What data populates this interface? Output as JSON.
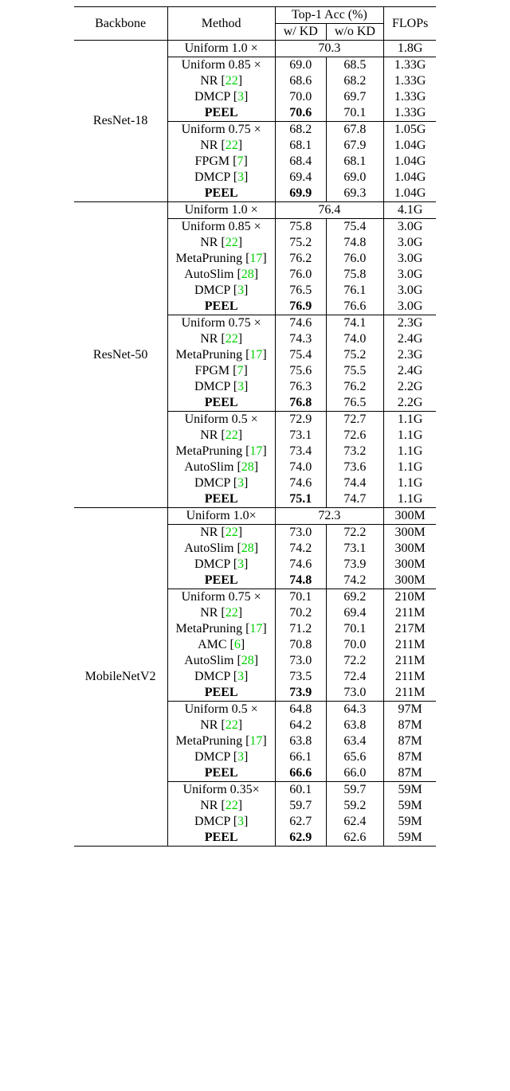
{
  "colors": {
    "cite": "#00d000",
    "border": "#000000",
    "text": "#000000",
    "bg": "#ffffff"
  },
  "font": {
    "family": "Times New Roman",
    "size_pt": 12
  },
  "header": {
    "backbone": "Backbone",
    "method": "Method",
    "top1": "Top-1 Acc (%)",
    "wkd": "w/ KD",
    "wokd": "w/o KD",
    "flops": "FLOPs"
  },
  "backbones": [
    {
      "name": "ResNet-18",
      "groups": [
        {
          "baseline": true,
          "rows": [
            {
              "method": "Uniform 1.0 ×",
              "merged": "70.3",
              "flops": "1.8G"
            }
          ]
        },
        {
          "rows": [
            {
              "method": "Uniform 0.85 ×",
              "wkd": "69.0",
              "wokd": "68.5",
              "flops": "1.33G"
            },
            {
              "method": "NR",
              "cite": "22",
              "wkd": "68.6",
              "wokd": "68.2",
              "flops": "1.33G"
            },
            {
              "method": "DMCP",
              "cite": "3",
              "wkd": "70.0",
              "wokd": "69.7",
              "flops": "1.33G"
            },
            {
              "method": "PEEL",
              "bold": true,
              "wkd": "70.6",
              "wkd_bold": true,
              "wokd": "70.1",
              "flops": "1.33G"
            }
          ]
        },
        {
          "rows": [
            {
              "method": "Uniform 0.75 ×",
              "wkd": "68.2",
              "wokd": "67.8",
              "flops": "1.05G"
            },
            {
              "method": "NR",
              "cite": "22",
              "wkd": "68.1",
              "wokd": "67.9",
              "flops": "1.04G"
            },
            {
              "method": "FPGM",
              "cite": "7",
              "wkd": "68.4",
              "wokd": "68.1",
              "flops": "1.04G"
            },
            {
              "method": "DMCP",
              "cite": "3",
              "wkd": "69.4",
              "wokd": "69.0",
              "flops": "1.04G"
            },
            {
              "method": "PEEL",
              "bold": true,
              "wkd": "69.9",
              "wkd_bold": true,
              "wokd": "69.3",
              "flops": "1.04G"
            }
          ]
        }
      ]
    },
    {
      "name": "ResNet-50",
      "groups": [
        {
          "baseline": true,
          "rows": [
            {
              "method": "Uniform 1.0 ×",
              "merged": "76.4",
              "flops": "4.1G"
            }
          ]
        },
        {
          "rows": [
            {
              "method": "Uniform 0.85 ×",
              "wkd": "75.8",
              "wokd": "75.4",
              "flops": "3.0G"
            },
            {
              "method": "NR",
              "cite": "22",
              "wkd": "75.2",
              "wokd": "74.8",
              "flops": "3.0G"
            },
            {
              "method": "MetaPruning",
              "cite": "17",
              "wkd": "76.2",
              "wokd": "76.0",
              "flops": "3.0G"
            },
            {
              "method": "AutoSlim",
              "cite": "28",
              "wkd": "76.0",
              "wokd": "75.8",
              "flops": "3.0G"
            },
            {
              "method": "DMCP",
              "cite": "3",
              "wkd": "76.5",
              "wokd": "76.1",
              "flops": "3.0G"
            },
            {
              "method": "PEEL",
              "bold": true,
              "wkd": "76.9",
              "wkd_bold": true,
              "wokd": "76.6",
              "flops": "3.0G"
            }
          ]
        },
        {
          "rows": [
            {
              "method": "Uniform 0.75 ×",
              "wkd": "74.6",
              "wokd": "74.1",
              "flops": "2.3G"
            },
            {
              "method": "NR",
              "cite": "22",
              "wkd": "74.3",
              "wokd": "74.0",
              "flops": "2.4G"
            },
            {
              "method": "MetaPruning",
              "cite": "17",
              "wkd": "75.4",
              "wokd": "75.2",
              "flops": "2.3G"
            },
            {
              "method": "FPGM",
              "cite": "7",
              "wkd": "75.6",
              "wokd": "75.5",
              "flops": "2.4G"
            },
            {
              "method": "DMCP",
              "cite": "3",
              "wkd": "76.3",
              "wokd": "76.2",
              "flops": "2.2G"
            },
            {
              "method": "PEEL",
              "bold": true,
              "wkd": "76.8",
              "wkd_bold": true,
              "wokd": "76.5",
              "flops": "2.2G"
            }
          ]
        },
        {
          "rows": [
            {
              "method": "Uniform 0.5 ×",
              "wkd": "72.9",
              "wokd": "72.7",
              "flops": "1.1G"
            },
            {
              "method": "NR",
              "cite": "22",
              "wkd": "73.1",
              "wokd": "72.6",
              "flops": "1.1G"
            },
            {
              "method": "MetaPruning",
              "cite": "17",
              "wkd": "73.4",
              "wokd": "73.2",
              "flops": "1.1G"
            },
            {
              "method": "AutoSlim",
              "cite": "28",
              "wkd": "74.0",
              "wokd": "73.6",
              "flops": "1.1G"
            },
            {
              "method": "DMCP",
              "cite": "3",
              "wkd": "74.6",
              "wokd": "74.4",
              "flops": "1.1G"
            },
            {
              "method": "PEEL",
              "bold": true,
              "wkd": "75.1",
              "wkd_bold": true,
              "wokd": "74.7",
              "flops": "1.1G"
            }
          ]
        }
      ]
    },
    {
      "name": "MobileNetV2",
      "groups": [
        {
          "baseline": true,
          "rows": [
            {
              "method": "Uniform 1.0×",
              "merged": "72.3",
              "flops": "300M"
            }
          ]
        },
        {
          "rows": [
            {
              "method": "NR",
              "cite": "22",
              "wkd": "73.0",
              "wokd": "72.2",
              "flops": "300M"
            },
            {
              "method": "AutoSlim",
              "cite": "28",
              "wkd": "74.2",
              "wokd": "73.1",
              "flops": "300M"
            },
            {
              "method": "DMCP",
              "cite": "3",
              "wkd": "74.6",
              "wokd": "73.9",
              "flops": "300M"
            },
            {
              "method": "PEEL",
              "bold": true,
              "wkd": "74.8",
              "wkd_bold": true,
              "wokd": "74.2",
              "flops": "300M"
            }
          ]
        },
        {
          "rows": [
            {
              "method": "Uniform 0.75 ×",
              "wkd": "70.1",
              "wokd": "69.2",
              "flops": "210M"
            },
            {
              "method": "NR",
              "cite": "22",
              "wkd": "70.2",
              "wokd": "69.4",
              "flops": "211M"
            },
            {
              "method": "MetaPruning",
              "cite": "17",
              "wkd": "71.2",
              "wokd": "70.1",
              "flops": "217M"
            },
            {
              "method": "AMC",
              "cite": "6",
              "wkd": "70.8",
              "wokd": "70.0",
              "flops": "211M"
            },
            {
              "method": "AutoSlim",
              "cite": "28",
              "wkd": "73.0",
              "wokd": "72.2",
              "flops": "211M"
            },
            {
              "method": "DMCP",
              "cite": "3",
              "wkd": "73.5",
              "wokd": "72.4",
              "flops": "211M"
            },
            {
              "method": "PEEL",
              "bold": true,
              "wkd": "73.9",
              "wkd_bold": true,
              "wokd": "73.0",
              "flops": "211M"
            }
          ]
        },
        {
          "rows": [
            {
              "method": "Uniform 0.5 ×",
              "wkd": "64.8",
              "wokd": "64.3",
              "flops": "97M"
            },
            {
              "method": "NR",
              "cite": "22",
              "wkd": "64.2",
              "wokd": "63.8",
              "flops": "87M"
            },
            {
              "method": "MetaPruning",
              "cite": "17",
              "wkd": "63.8",
              "wokd": "63.4",
              "flops": "87M"
            },
            {
              "method": "DMCP",
              "cite": "3",
              "wkd": "66.1",
              "wokd": "65.6",
              "flops": "87M"
            },
            {
              "method": "PEEL",
              "bold": true,
              "wkd": "66.6",
              "wkd_bold": true,
              "wokd": "66.0",
              "flops": "87M"
            }
          ]
        },
        {
          "rows": [
            {
              "method": "Uniform 0.35×",
              "wkd": "60.1",
              "wokd": "59.7",
              "flops": "59M"
            },
            {
              "method": "NR",
              "cite": "22",
              "wkd": "59.7",
              "wokd": "59.2",
              "flops": "59M"
            },
            {
              "method": "DMCP",
              "cite": "3",
              "wkd": "62.7",
              "wokd": "62.4",
              "flops": "59M"
            },
            {
              "method": "PEEL",
              "bold": true,
              "wkd": "62.9",
              "wkd_bold": true,
              "wokd": "62.6",
              "flops": "59M"
            }
          ]
        }
      ]
    }
  ]
}
